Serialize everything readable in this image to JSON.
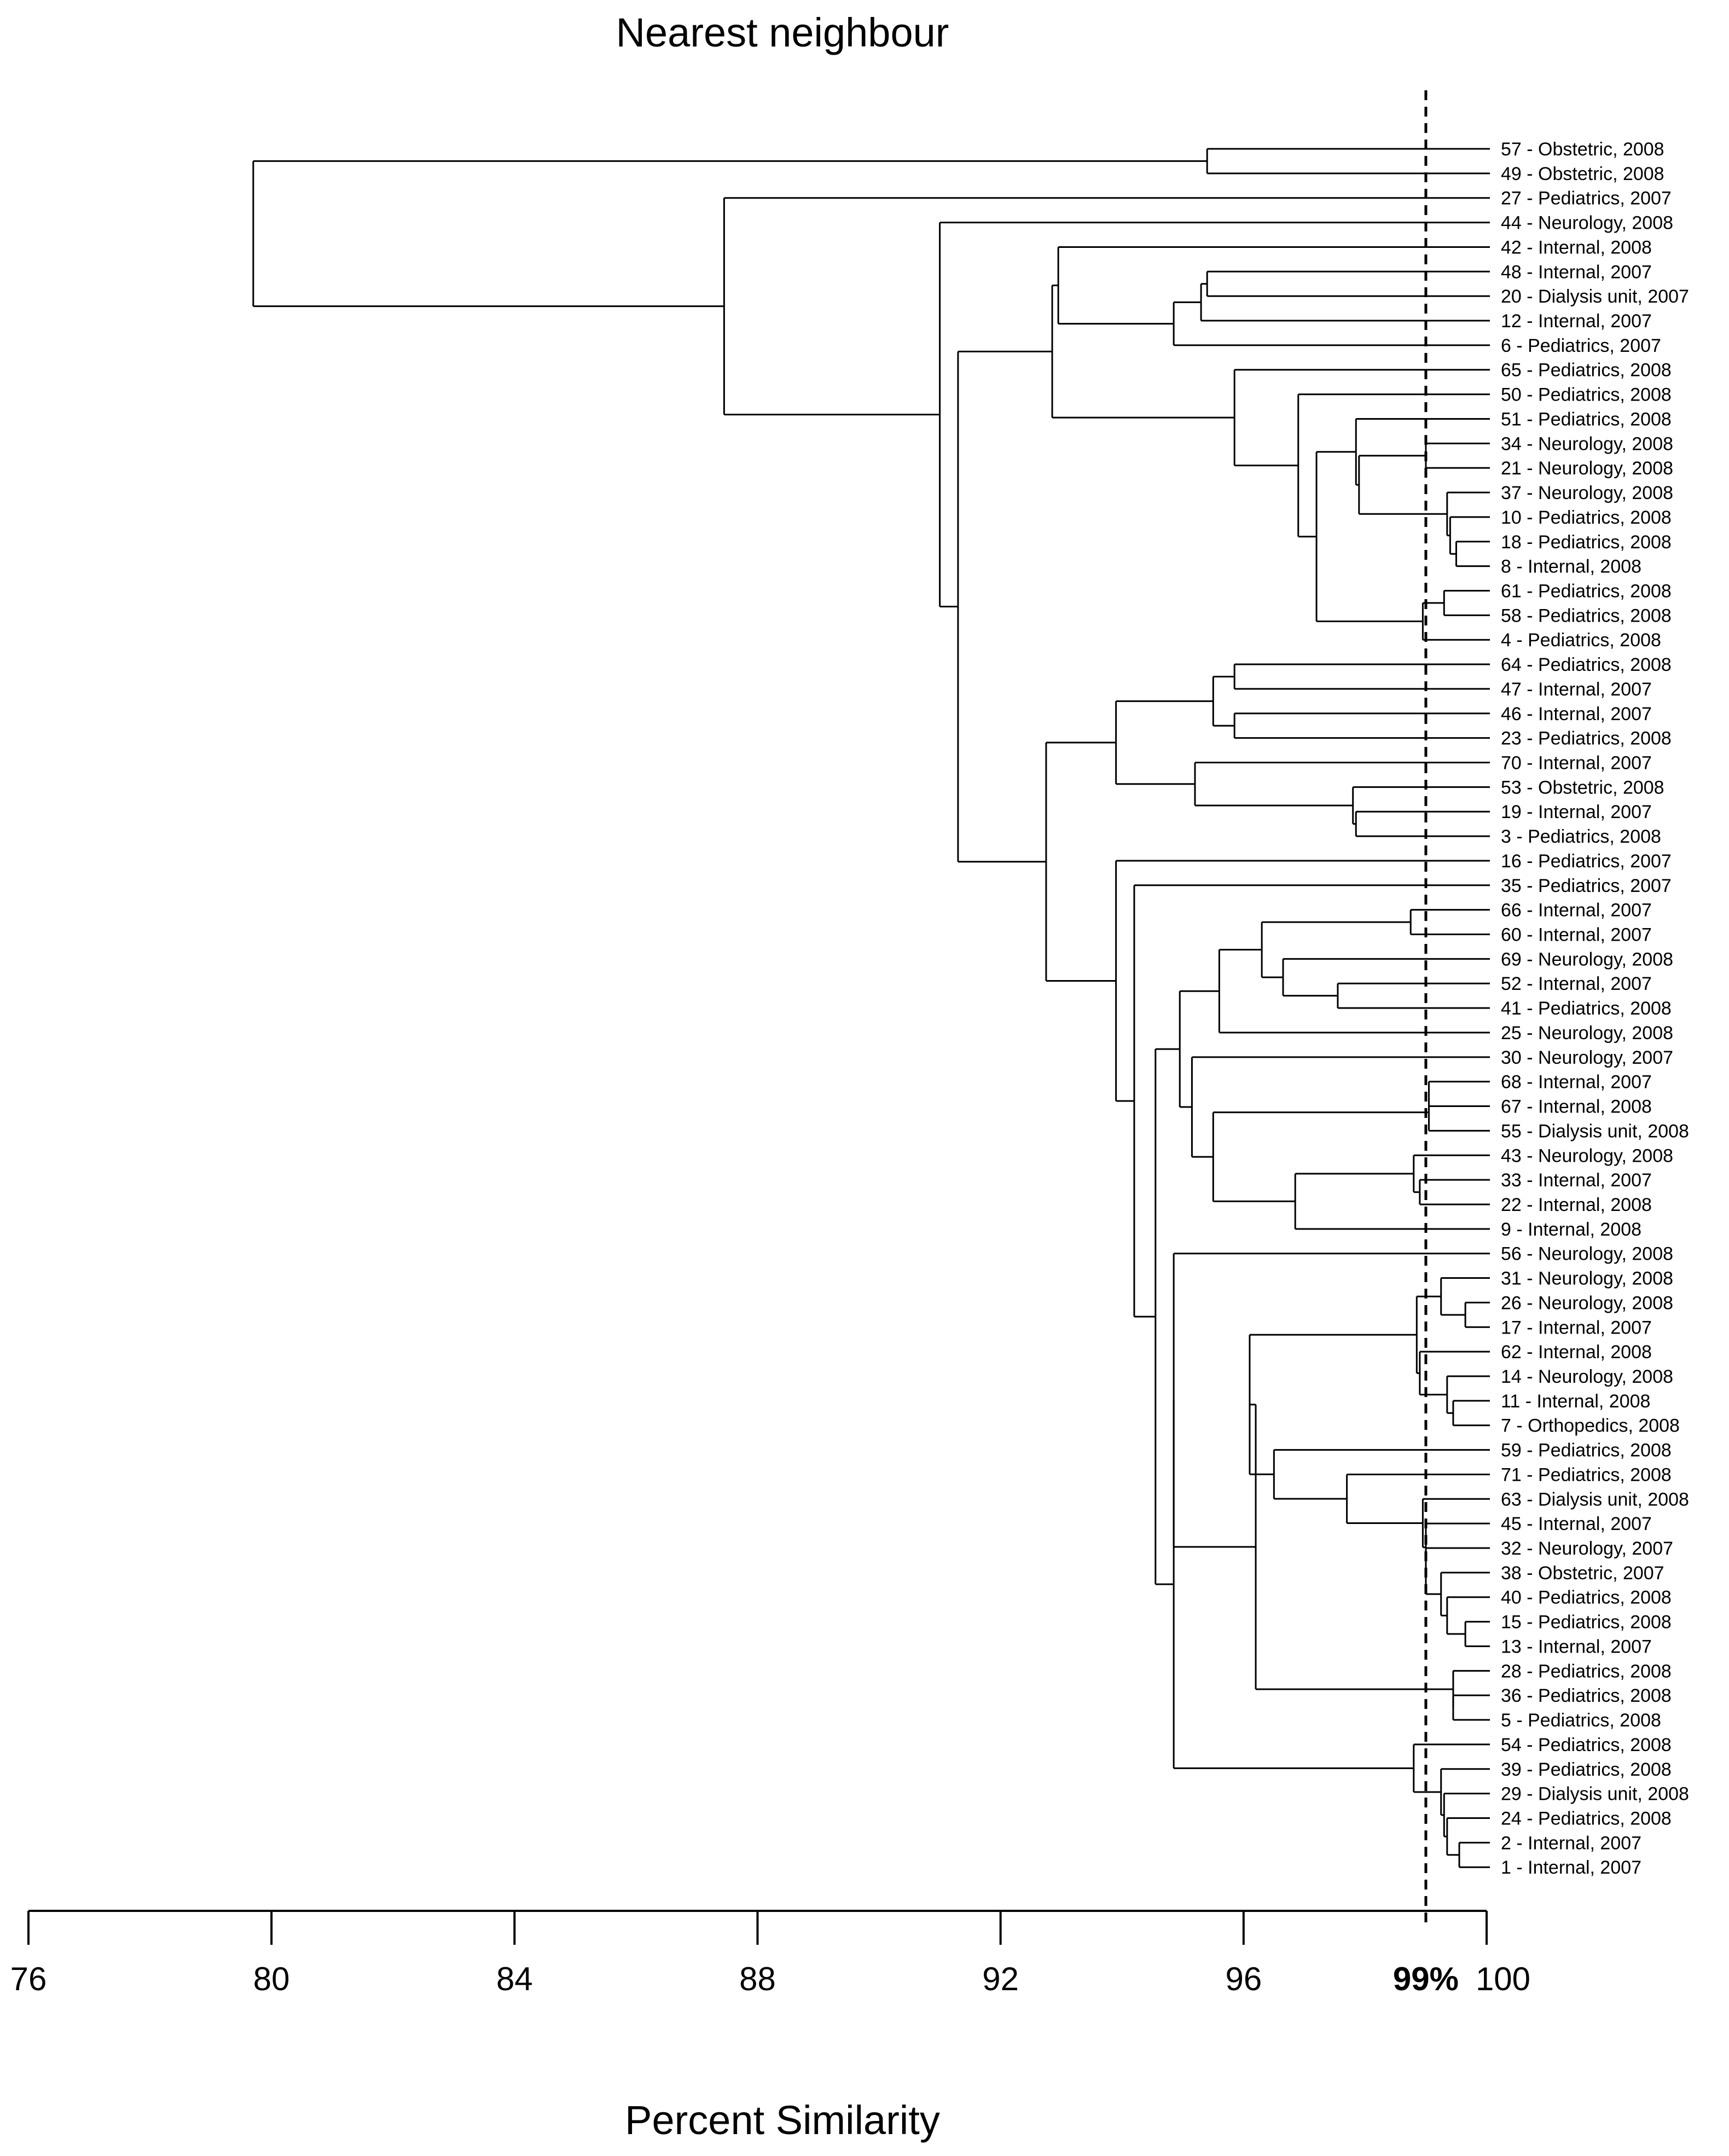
{
  "chart_data": {
    "type": "dendrogram",
    "title": "Nearest neighbour",
    "xlabel": "Percent Similarity",
    "xlim": [
      76,
      100
    ],
    "ticks": [
      {
        "value": 76,
        "label": "76"
      },
      {
        "value": 80,
        "label": "80"
      },
      {
        "value": 84,
        "label": "84"
      },
      {
        "value": 88,
        "label": "88"
      },
      {
        "value": 92,
        "label": "92"
      },
      {
        "value": 96,
        "label": "96"
      },
      {
        "value": 100,
        "label": "100"
      }
    ],
    "cutoff": {
      "value": 99,
      "label": "99%"
    },
    "leaves": [
      "57 - Obstetric, 2008",
      "49 - Obstetric, 2008",
      "27 - Pediatrics, 2007",
      "44 - Neurology, 2008",
      "42 - Internal, 2008",
      "48 - Internal, 2007",
      "20 - Dialysis unit, 2007",
      "12 - Internal, 2007",
      "6 - Pediatrics, 2007",
      "65 - Pediatrics, 2008",
      "50 - Pediatrics, 2008",
      "51 - Pediatrics, 2008",
      "34 - Neurology, 2008",
      "21 - Neurology, 2008",
      "37 - Neurology, 2008",
      "10 - Pediatrics, 2008",
      "18 - Pediatrics, 2008",
      "8 - Internal, 2008",
      "61 - Pediatrics, 2008",
      "58 - Pediatrics, 2008",
      "4 - Pediatrics, 2008",
      "64 - Pediatrics, 2008",
      "47 - Internal, 2007",
      "46 - Internal, 2007",
      "23 - Pediatrics, 2008",
      "70 - Internal, 2007",
      "53 - Obstetric, 2008",
      "19 - Internal, 2007",
      "3 - Pediatrics, 2008",
      "16 - Pediatrics, 2007",
      "35 - Pediatrics, 2007",
      "66 - Internal, 2007",
      "60 - Internal, 2007",
      "69  - Neurology, 2008",
      "52 - Internal, 2007",
      "41 - Pediatrics, 2008",
      "25 - Neurology, 2008",
      "30 - Neurology, 2007",
      "68 - Internal, 2007",
      "67 - Internal, 2008",
      "55 - Dialysis unit, 2008",
      "43 - Neurology, 2008",
      "33 - Internal, 2007",
      "22 - Internal, 2008",
      "9 - Internal, 2008",
      "56 - Neurology, 2008",
      "31 - Neurology, 2008",
      "26 - Neurology, 2008",
      "17 - Internal, 2007",
      "62 - Internal, 2008",
      "14 - Neurology, 2008",
      "11 - Internal, 2008",
      "7 - Orthopedics, 2008",
      "59 - Pediatrics, 2008",
      "71 - Pediatrics, 2008",
      "63 - Dialysis unit, 2008",
      "45 - Internal, 2007",
      "32 - Neurology, 2007",
      "38 - Obstetric, 2007",
      "40 - Pediatrics, 2008",
      "15 - Pediatrics, 2008",
      "13 - Internal, 2007",
      "28 - Pediatrics, 2008",
      "36 - Pediatrics, 2008",
      "5 - Pediatrics, 2008",
      "54 - Pediatrics, 2008",
      "39 - Pediatrics, 2008",
      "29 - Dialysis unit, 2008",
      "24 - Pediatrics, 2008",
      "2 - Internal, 2007",
      "1 - Internal, 2007"
    ],
    "merges": [
      {
        "id": "A1",
        "children": [
          "L0",
          "L1"
        ],
        "sim": 95.4
      },
      {
        "id": "A2",
        "children": [
          "L5",
          "L6"
        ],
        "sim": 95.4
      },
      {
        "id": "A3",
        "children": [
          "A2",
          "L7"
        ],
        "sim": 95.3
      },
      {
        "id": "A4",
        "children": [
          "A3",
          "L8"
        ],
        "sim": 94.85
      },
      {
        "id": "A5",
        "children": [
          "L4",
          "A4"
        ],
        "sim": 92.95
      },
      {
        "id": "B1",
        "children": [
          "L12",
          "L13"
        ],
        "sim": 99.0
      },
      {
        "id": "B2",
        "children": [
          "L16",
          "L17"
        ],
        "sim": 99.5
      },
      {
        "id": "B3",
        "children": [
          "L15",
          "B2"
        ],
        "sim": 99.4
      },
      {
        "id": "B4",
        "children": [
          "L14",
          "B3"
        ],
        "sim": 99.35
      },
      {
        "id": "B5",
        "children": [
          "B1",
          "B4"
        ],
        "sim": 97.9
      },
      {
        "id": "B6",
        "children": [
          "L11",
          "B5"
        ],
        "sim": 97.85
      },
      {
        "id": "B7",
        "children": [
          "L18",
          "L19"
        ],
        "sim": 99.3
      },
      {
        "id": "B8",
        "children": [
          "B7",
          "L20"
        ],
        "sim": 98.95
      },
      {
        "id": "B9",
        "children": [
          "B6",
          "B8"
        ],
        "sim": 97.2
      },
      {
        "id": "B10",
        "children": [
          "L10",
          "B9"
        ],
        "sim": 96.9
      },
      {
        "id": "B11",
        "children": [
          "L9",
          "B10"
        ],
        "sim": 95.85
      },
      {
        "id": "B12",
        "children": [
          "A5",
          "B11"
        ],
        "sim": 92.85
      },
      {
        "id": "C1",
        "children": [
          "L21",
          "L22"
        ],
        "sim": 95.85
      },
      {
        "id": "C2",
        "children": [
          "L23",
          "L24"
        ],
        "sim": 95.85
      },
      {
        "id": "C3",
        "children": [
          "C1",
          "C2"
        ],
        "sim": 95.5
      },
      {
        "id": "C4",
        "children": [
          "L27",
          "L28"
        ],
        "sim": 97.85
      },
      {
        "id": "C5",
        "children": [
          "L26",
          "C4"
        ],
        "sim": 97.8
      },
      {
        "id": "C6",
        "children": [
          "L25",
          "C5"
        ],
        "sim": 95.2
      },
      {
        "id": "C7",
        "children": [
          "C3",
          "C6"
        ],
        "sim": 93.9
      },
      {
        "id": "D1",
        "children": [
          "L31",
          "L32"
        ],
        "sim": 98.75
      },
      {
        "id": "D2",
        "children": [
          "L34",
          "L35"
        ],
        "sim": 97.55
      },
      {
        "id": "D3",
        "children": [
          "L33",
          "D2"
        ],
        "sim": 96.65
      },
      {
        "id": "D4",
        "children": [
          "D1",
          "D3"
        ],
        "sim": 96.3
      },
      {
        "id": "D5",
        "children": [
          "D4",
          "L36"
        ],
        "sim": 95.6
      },
      {
        "id": "D6",
        "children": [
          "L38",
          "L39"
        ],
        "sim": 99.05
      },
      {
        "id": "D7",
        "children": [
          "D6",
          "L40"
        ],
        "sim": 99.05
      },
      {
        "id": "D8",
        "children": [
          "L42",
          "L43"
        ],
        "sim": 98.9
      },
      {
        "id": "D9",
        "children": [
          "L41",
          "D8"
        ],
        "sim": 98.8
      },
      {
        "id": "D10",
        "children": [
          "D9",
          "L44"
        ],
        "sim": 96.85
      },
      {
        "id": "D11",
        "children": [
          "D7",
          "D10"
        ],
        "sim": 95.5
      },
      {
        "id": "D12",
        "children": [
          "L37",
          "D11"
        ],
        "sim": 95.15
      },
      {
        "id": "D13",
        "children": [
          "D5",
          "D12"
        ],
        "sim": 94.95
      },
      {
        "id": "E1",
        "children": [
          "L47",
          "L48"
        ],
        "sim": 99.65
      },
      {
        "id": "E2",
        "children": [
          "L46",
          "E1"
        ],
        "sim": 99.25
      },
      {
        "id": "E3",
        "children": [
          "L51",
          "L52"
        ],
        "sim": 99.45
      },
      {
        "id": "E4",
        "children": [
          "L50",
          "E3"
        ],
        "sim": 99.35
      },
      {
        "id": "E5",
        "children": [
          "L49",
          "E4"
        ],
        "sim": 98.9
      },
      {
        "id": "E6",
        "children": [
          "E2",
          "E5"
        ],
        "sim": 98.85
      },
      {
        "id": "E7",
        "children": [
          "L60",
          "L61"
        ],
        "sim": 99.65
      },
      {
        "id": "E8",
        "children": [
          "L59",
          "E7"
        ],
        "sim": 99.35
      },
      {
        "id": "E9",
        "children": [
          "L58",
          "E8"
        ],
        "sim": 99.25
      },
      {
        "id": "E10",
        "children": [
          "L57",
          "E9"
        ],
        "sim": 99.0
      },
      {
        "id": "E11",
        "children": [
          "L56",
          "E10"
        ],
        "sim": 99.0
      },
      {
        "id": "E12",
        "children": [
          "L55",
          "E11"
        ],
        "sim": 98.95
      },
      {
        "id": "E13",
        "children": [
          "L54",
          "E12"
        ],
        "sim": 97.7
      },
      {
        "id": "E14",
        "children": [
          "L53",
          "E13"
        ],
        "sim": 96.5
      },
      {
        "id": "E15",
        "children": [
          "E6",
          "E14"
        ],
        "sim": 96.1
      },
      {
        "id": "E16",
        "children": [
          "L63",
          "L64"
        ],
        "sim": 99.45
      },
      {
        "id": "E17",
        "children": [
          "L62",
          "E16"
        ],
        "sim": 99.45
      },
      {
        "id": "E18",
        "children": [
          "E15",
          "E17"
        ],
        "sim": 96.2
      },
      {
        "id": "E19",
        "children": [
          "L45",
          "E18"
        ],
        "sim": 94.85
      },
      {
        "id": "E20",
        "children": [
          "L69",
          "L70"
        ],
        "sim": 99.55
      },
      {
        "id": "E21",
        "children": [
          "L68",
          "E20"
        ],
        "sim": 99.35
      },
      {
        "id": "E22",
        "children": [
          "L67",
          "E21"
        ],
        "sim": 99.3
      },
      {
        "id": "E23",
        "children": [
          "L66",
          "E22"
        ],
        "sim": 99.25
      },
      {
        "id": "E24",
        "children": [
          "L65",
          "E23"
        ],
        "sim": 98.8
      },
      {
        "id": "E25",
        "children": [
          "E19",
          "E24"
        ],
        "sim": 94.85
      },
      {
        "id": "F1",
        "children": [
          "D13",
          "E25"
        ],
        "sim": 94.55
      },
      {
        "id": "F2",
        "children": [
          "L30",
          "F1"
        ],
        "sim": 94.2
      },
      {
        "id": "F3",
        "children": [
          "L29",
          "F2"
        ],
        "sim": 93.9
      },
      {
        "id": "F4",
        "children": [
          "C7",
          "F3"
        ],
        "sim": 92.75
      },
      {
        "id": "G1",
        "children": [
          "B12",
          "F4"
        ],
        "sim": 91.3
      },
      {
        "id": "G2",
        "children": [
          "L3",
          "G1"
        ],
        "sim": 91.0
      },
      {
        "id": "G3",
        "children": [
          "L2",
          "G2"
        ],
        "sim": 87.45
      },
      {
        "id": "ROOT",
        "children": [
          "A1",
          "G3"
        ],
        "sim": 79.7
      }
    ]
  }
}
